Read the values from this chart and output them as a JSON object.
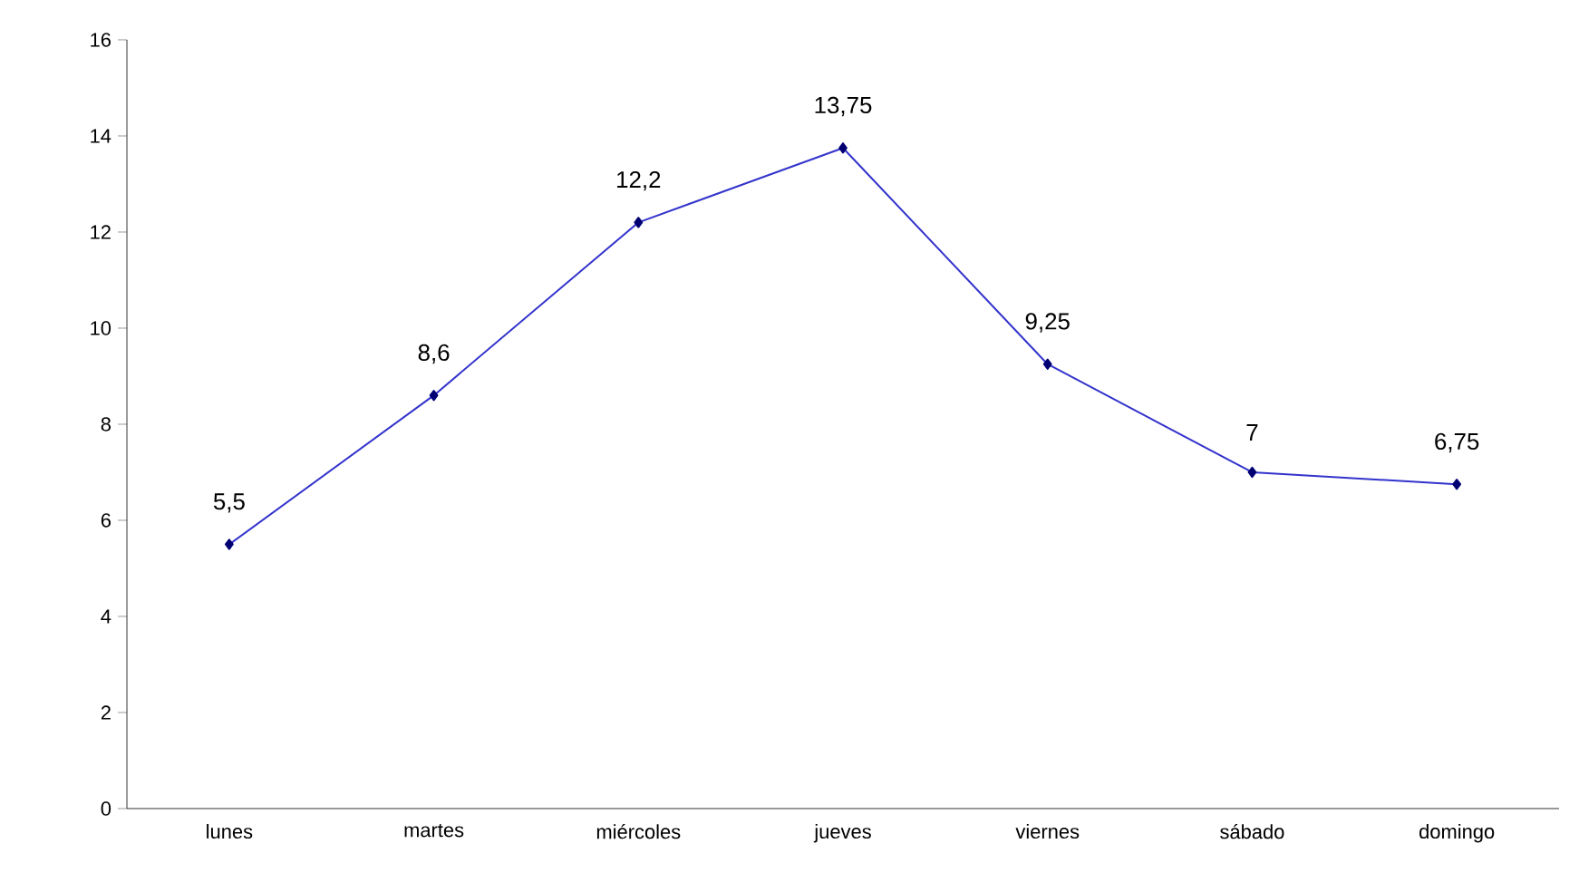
{
  "chart_data": {
    "type": "line",
    "categories": [
      "lunes",
      "martes",
      "miércoles",
      "jueves",
      "viernes",
      "sábado",
      "domingo"
    ],
    "series": [
      {
        "color": "#3333cc",
        "values": [
          5.5,
          8.6,
          12.2,
          13.75,
          9.25,
          7,
          6.75
        ],
        "value_labels": [
          "5,5",
          "8,6",
          "12,2",
          "13,75",
          "9,25",
          "7",
          "6,75"
        ]
      }
    ],
    "ylim": [
      0,
      16
    ],
    "yticks": [
      0,
      2,
      4,
      6,
      8,
      10,
      12,
      14,
      16
    ],
    "marker": "diamond",
    "line_style": "solid",
    "grid": false
  }
}
